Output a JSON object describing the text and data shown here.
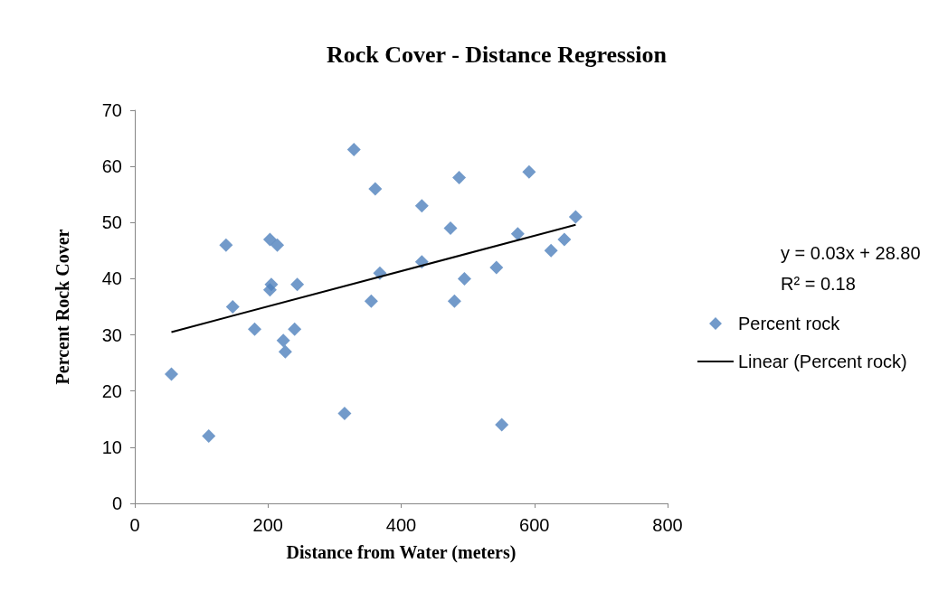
{
  "chart_data": {
    "type": "scatter",
    "title": "Rock Cover - Distance Regression",
    "xlabel": "Distance from Water (meters)",
    "ylabel": "Percent Rock Cover",
    "xlim": [
      0,
      800
    ],
    "xticks": [
      0,
      200,
      400,
      600,
      800
    ],
    "ylim": [
      0,
      70
    ],
    "yticks": [
      0,
      10,
      20,
      30,
      40,
      50,
      60,
      70
    ],
    "grid": false,
    "legend": "right",
    "annotations": [
      "y = 0.03x + 28.80",
      "R² = 0.18"
    ],
    "series": [
      {
        "name": "Percent rock",
        "marker": "diamond",
        "color": "#4f81bd",
        "x": [
          55,
          111,
          137,
          147,
          180,
          203,
          214,
          205,
          203,
          223,
          226,
          240,
          244,
          315,
          329,
          361,
          355,
          368,
          431,
          431,
          474,
          487,
          480,
          495,
          543,
          551,
          575,
          592,
          625,
          645,
          662
        ],
        "values": [
          23,
          12,
          46,
          35,
          31,
          47,
          46,
          39,
          38,
          29,
          27,
          31,
          39,
          16,
          63,
          56,
          36,
          41,
          53,
          43,
          49,
          58,
          36,
          40,
          42,
          14,
          48,
          59,
          45,
          47,
          51
        ]
      },
      {
        "name": "Linear (Percent rock)",
        "type": "line",
        "marker": "none",
        "line_style": "solid",
        "color": "#000000",
        "x": [
          55,
          662
        ],
        "values": [
          30.5,
          49.6
        ]
      }
    ]
  }
}
